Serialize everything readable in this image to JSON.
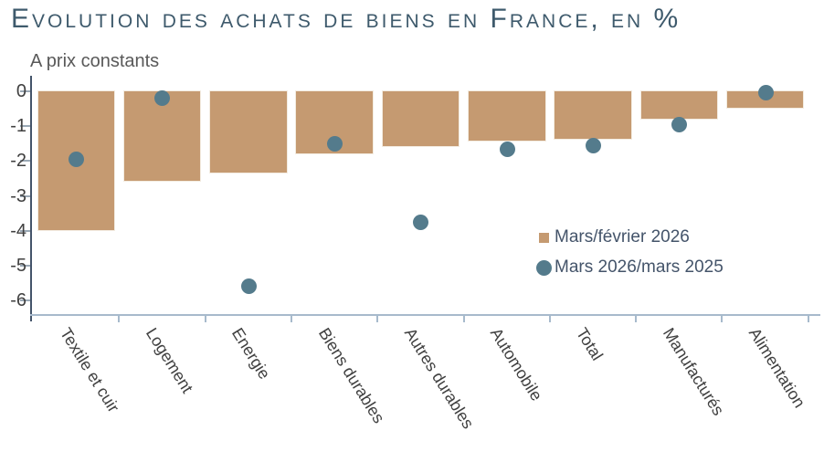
{
  "page": {
    "title": "Evolution des achats de biens en France, en %",
    "subtitle": "A prix constants"
  },
  "chart_data": {
    "type": "bar",
    "categories": [
      "Textile et cuir",
      "Logement",
      "Energie",
      "Biens durables",
      "Autres durables",
      "Automobile",
      "Total",
      "Manufacturés",
      "Alimentation"
    ],
    "series": [
      {
        "name": "Mars/février 2026",
        "type": "bar",
        "color": "#c59a71",
        "values": [
          -4.0,
          -2.6,
          -2.35,
          -1.8,
          -1.6,
          -1.45,
          -1.4,
          -0.8,
          -0.5
        ]
      },
      {
        "name": "Mars 2026/mars 2025",
        "type": "scatter",
        "color": "#547b8c",
        "values": [
          -1.95,
          -0.2,
          -5.6,
          -1.5,
          -3.75,
          -1.65,
          -1.55,
          -0.95,
          -0.05
        ]
      }
    ],
    "title": "Evolution des achats de biens en France, en %",
    "subtitle": "A prix constants",
    "xlabel": "",
    "ylabel": "",
    "ylim": [
      -6.4,
      0
    ],
    "yticks": [
      0,
      -1,
      -2,
      -3,
      -4,
      -5,
      -6
    ],
    "grid": false,
    "legend_position": "inside-right",
    "colors": {
      "title_text": "#3e5a6c",
      "subtitle_text": "#595959",
      "axis_tick_text": "#404040",
      "x_label_text": "#404040",
      "legend_text": "#44546a",
      "y_axis_line": "#44546a",
      "x_axis_line": "#a7bacc",
      "y_tick_mark": "#9aa8b5",
      "bar_border": "#f3ece1"
    }
  }
}
